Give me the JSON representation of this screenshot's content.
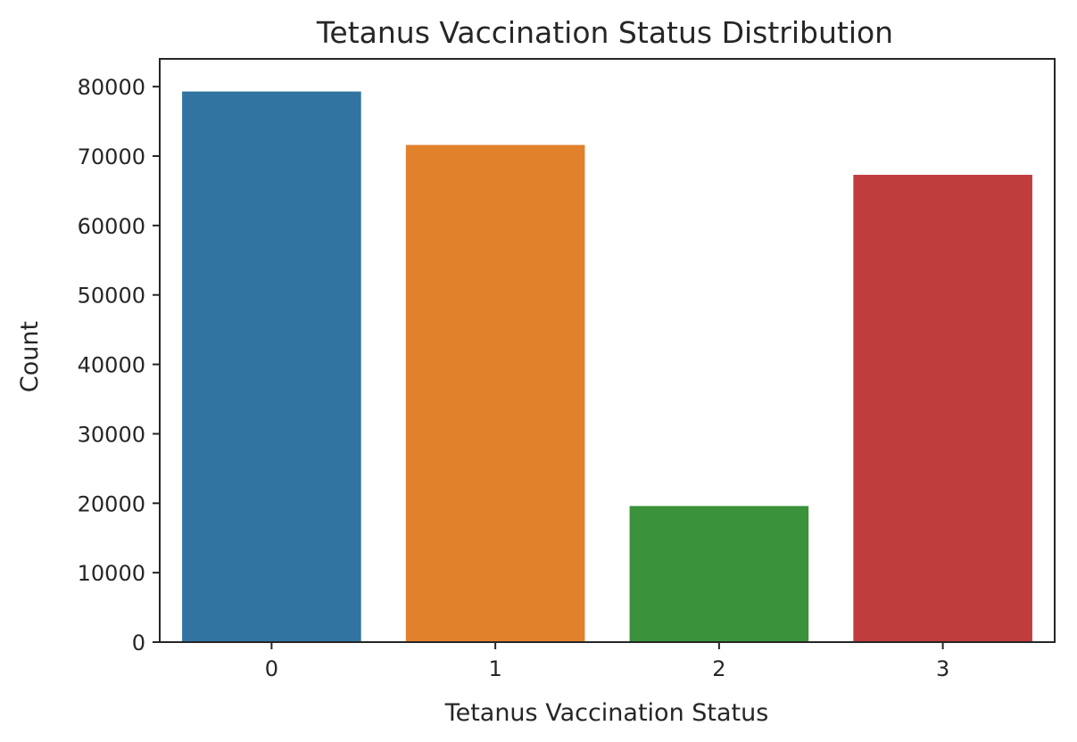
{
  "chart_data": {
    "type": "bar",
    "title": "Tetanus Vaccination Status Distribution",
    "xlabel": "Tetanus Vaccination Status",
    "ylabel": "Count",
    "categories": [
      "0",
      "1",
      "2",
      "3"
    ],
    "values": [
      79300,
      71600,
      19600,
      67300
    ],
    "colors": [
      "#3274a1",
      "#e1812c",
      "#3a923a",
      "#c03d3e"
    ],
    "ylim": [
      0,
      84000
    ],
    "yticks": [
      0,
      10000,
      20000,
      30000,
      40000,
      50000,
      60000,
      70000,
      80000
    ],
    "ytick_labels": [
      "0",
      "10000",
      "20000",
      "30000",
      "40000",
      "50000",
      "60000",
      "70000",
      "80000"
    ],
    "grid": false,
    "legend": "none"
  }
}
